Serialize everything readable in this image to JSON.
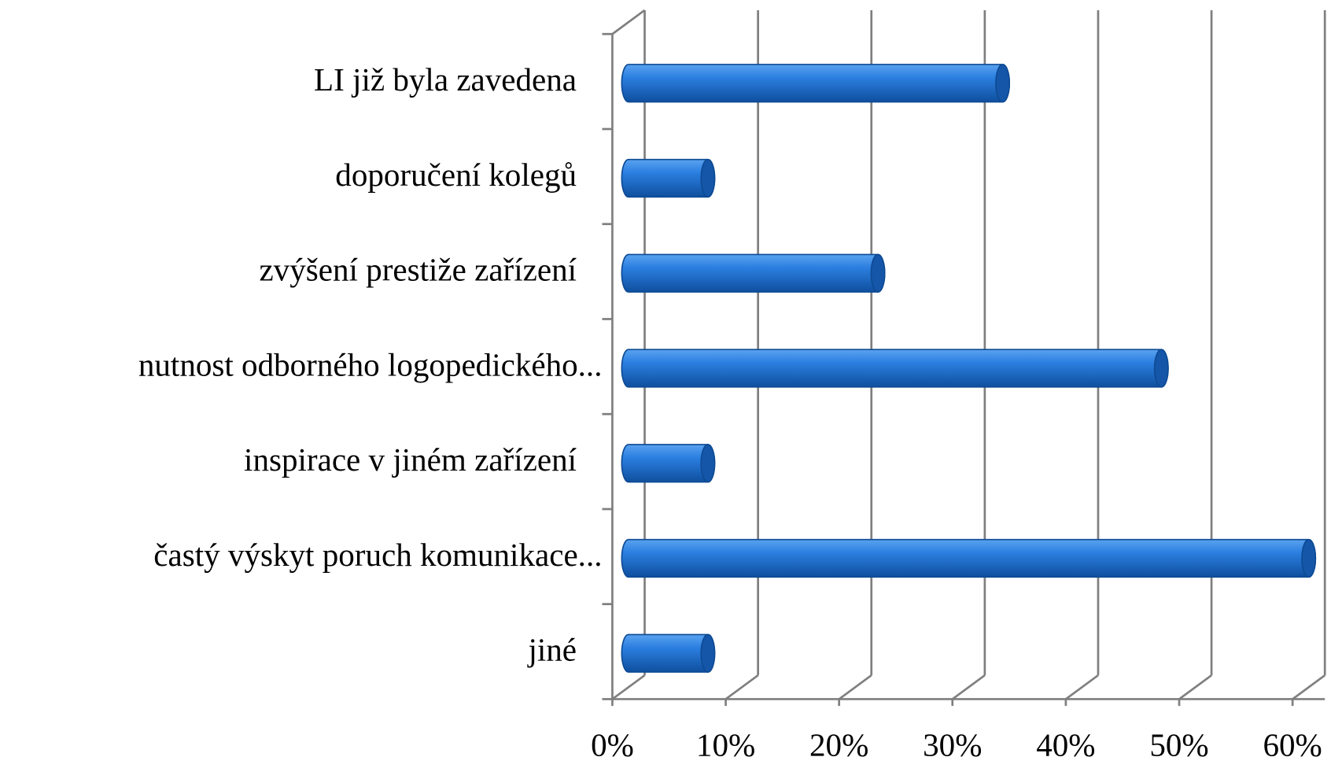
{
  "chart_data": {
    "type": "bar",
    "orientation": "horizontal",
    "categories": [
      "LI již byla zavedena",
      "doporučení kolegů",
      "zvýšení prestiže zařízení",
      "nutnost odborného logopedického...",
      "inspirace v jiném zařízení",
      "častý výskyt poruch komunikace...",
      "jiné"
    ],
    "values": [
      33,
      7,
      22,
      47,
      7,
      60,
      7
    ],
    "color": "#1f6fd0",
    "xlim": [
      0,
      60
    ],
    "xticks": [
      {
        "value": 0,
        "label": "0%"
      },
      {
        "value": 10,
        "label": "10%"
      },
      {
        "value": 20,
        "label": "20%"
      },
      {
        "value": 30,
        "label": "30%"
      },
      {
        "value": 40,
        "label": "40%"
      },
      {
        "value": 50,
        "label": "50%"
      },
      {
        "value": 60,
        "label": "60%"
      }
    ],
    "grid": true
  }
}
